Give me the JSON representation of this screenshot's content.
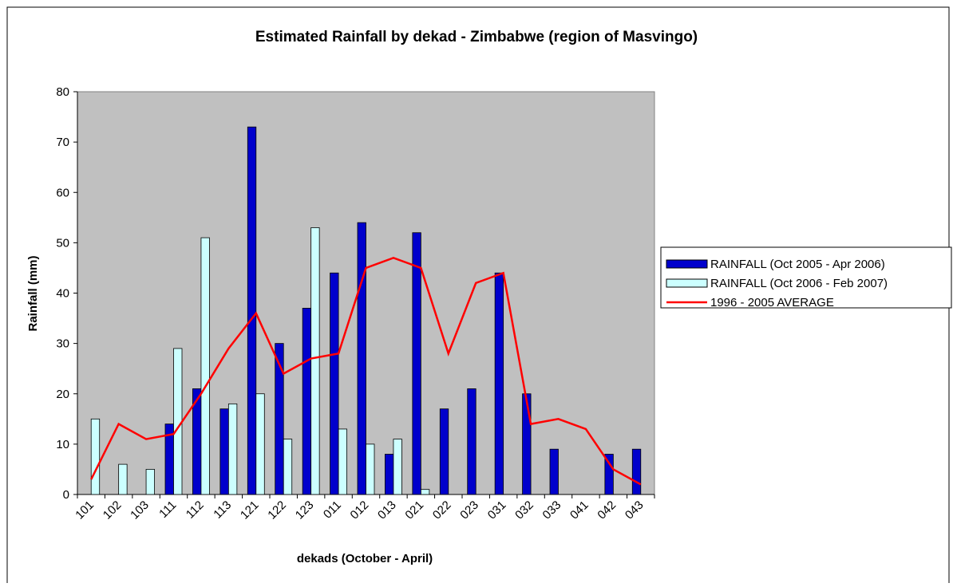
{
  "chart_data": {
    "type": "bar",
    "title": "Estimated Rainfall by dekad - Zimbabwe (region of Masvingo)",
    "x_label": "dekads (October - April)",
    "y_label": "Rainfall (mm)",
    "categories": [
      "101",
      "102",
      "103",
      "111",
      "112",
      "113",
      "121",
      "122",
      "123",
      "011",
      "012",
      "013",
      "021",
      "022",
      "023",
      "031",
      "032",
      "033",
      "041",
      "042",
      "043"
    ],
    "series": [
      {
        "name": "RAINFALL (Oct 2005 - Apr 2006)",
        "type": "bar",
        "color": "#0000cc",
        "values": [
          0,
          0,
          0,
          14,
          21,
          17,
          73,
          30,
          37,
          44,
          54,
          8,
          52,
          17,
          21,
          44,
          20,
          9,
          0,
          8,
          9
        ]
      },
      {
        "name": "RAINFALL (Oct 2006 - Feb 2007)",
        "type": "bar",
        "color": "#ccffff",
        "values": [
          15,
          6,
          5,
          29,
          51,
          18,
          20,
          11,
          53,
          13,
          10,
          11,
          1,
          null,
          null,
          null,
          null,
          null,
          null,
          null,
          null
        ]
      },
      {
        "name": "1996 - 2005 AVERAGE",
        "type": "line",
        "color": "#ff0000",
        "values": [
          3,
          14,
          11,
          12,
          20,
          29,
          36,
          24,
          27,
          28,
          45,
          47,
          45,
          28,
          42,
          44,
          14,
          15,
          13,
          5,
          2
        ]
      }
    ],
    "ylim": [
      0,
      80
    ],
    "yticks": [
      0,
      10,
      20,
      30,
      40,
      50,
      60,
      70,
      80
    ],
    "grid": false,
    "legend": "right"
  }
}
